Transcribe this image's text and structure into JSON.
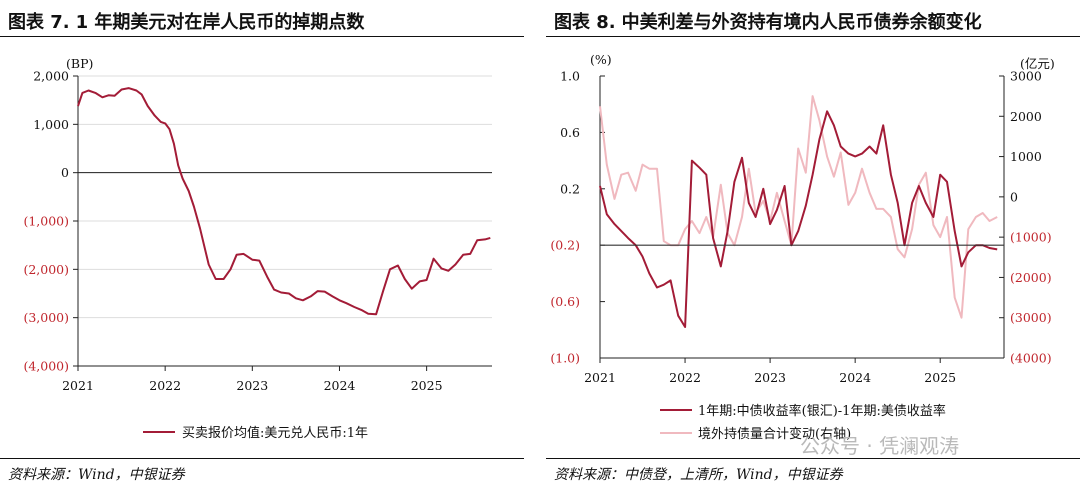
{
  "left": {
    "figure_label": "图表 7.",
    "title": "1 年期美元对在岸人民币的掉期点数",
    "source": "资料来源：Wind，中银证券",
    "chart_data": {
      "type": "line",
      "title": "1 年期美元对在岸人民币的掉期点数",
      "ylabel": "(BP)",
      "ylim": [
        -4000,
        2000
      ],
      "xlim": [
        2021.0,
        2025.75
      ],
      "yticks": [
        2000,
        1000,
        0,
        -1000,
        -2000,
        -3000,
        -4000
      ],
      "ytick_labels": [
        "2,000",
        "1,000",
        "0",
        "(1,000)",
        "(2,000)",
        "(3,000)",
        "(4,000)"
      ],
      "xticks": [
        2021,
        2022,
        2023,
        2024,
        2025
      ],
      "xtick_labels": [
        "2021",
        "2022",
        "2023",
        "2024",
        "2025"
      ],
      "colors": {
        "series": "#a31c37",
        "negative_tick": "#c0262d",
        "axis": "#222222",
        "grid": "#dddddd"
      },
      "series": [
        {
          "name": "买卖报价均值:美元兑人民币:1年",
          "x": [
            2021.0,
            2021.05,
            2021.12,
            2021.2,
            2021.28,
            2021.35,
            2021.42,
            2021.5,
            2021.58,
            2021.67,
            2021.73,
            2021.8,
            2021.88,
            2021.95,
            2022.0,
            2022.05,
            2022.1,
            2022.15,
            2022.2,
            2022.27,
            2022.33,
            2022.4,
            2022.5,
            2022.58,
            2022.67,
            2022.75,
            2022.82,
            2022.9,
            2023.0,
            2023.08,
            2023.17,
            2023.25,
            2023.33,
            2023.42,
            2023.5,
            2023.58,
            2023.67,
            2023.75,
            2023.83,
            2023.92,
            2024.0,
            2024.08,
            2024.17,
            2024.25,
            2024.33,
            2024.42,
            2024.5,
            2024.58,
            2024.67,
            2024.75,
            2024.83,
            2024.92,
            2025.0,
            2025.08,
            2025.17,
            2025.25,
            2025.33,
            2025.42,
            2025.5,
            2025.58,
            2025.67,
            2025.73
          ],
          "values": [
            1380,
            1650,
            1700,
            1650,
            1560,
            1600,
            1590,
            1720,
            1750,
            1700,
            1620,
            1380,
            1180,
            1050,
            1020,
            900,
            600,
            150,
            -120,
            -380,
            -700,
            -1150,
            -1900,
            -2200,
            -2200,
            -2000,
            -1700,
            -1680,
            -1800,
            -1820,
            -2150,
            -2420,
            -2480,
            -2500,
            -2600,
            -2640,
            -2560,
            -2450,
            -2460,
            -2560,
            -2640,
            -2700,
            -2780,
            -2840,
            -2920,
            -2930,
            -2450,
            -2000,
            -1920,
            -2200,
            -2400,
            -2250,
            -2220,
            -1780,
            -1980,
            -2030,
            -1900,
            -1700,
            -1680,
            -1400,
            -1380,
            -1350
          ]
        }
      ],
      "legend": "bottom"
    }
  },
  "right": {
    "figure_label": "图表 8.",
    "title": "中美利差与外资持有境内人民币债券余额变化",
    "source": "资料来源：中债登，上清所，Wind，中银证券",
    "chart_data": {
      "type": "line",
      "title": "中美利差与外资持有境内人民币债券余额变化",
      "ylabel": "(%)",
      "y2label": "(亿元)",
      "ylim": [
        -1.0,
        1.0
      ],
      "y2lim": [
        -4000,
        3000
      ],
      "xlim": [
        2021.0,
        2025.75
      ],
      "yticks": [
        1.0,
        0.6,
        0.2,
        -0.2,
        -0.6,
        -1.0
      ],
      "ytick_labels": [
        "1.0",
        "0.6",
        "0.2",
        "(0.2)",
        "(0.6)",
        "(1.0)"
      ],
      "y2ticks": [
        3000,
        2000,
        1000,
        0,
        -1000,
        -2000,
        -3000,
        -4000
      ],
      "y2tick_labels": [
        "3000",
        "2000",
        "1000",
        "0",
        "(1000)",
        "(2000)",
        "(3000)",
        "(4000)"
      ],
      "xticks": [
        2021,
        2022,
        2023,
        2024,
        2025
      ],
      "xtick_labels": [
        "2021",
        "2022",
        "2023",
        "2024",
        "2025"
      ],
      "hline_y": -0.2,
      "colors": {
        "spread": "#a31c37",
        "holdings": "#f0b9bf",
        "negative_tick": "#c0262d",
        "axis": "#222222",
        "hline": "#333333"
      },
      "series": [
        {
          "name": "1年期:中债收益率(银汇)-1年期:美债收益率",
          "axis": "left",
          "x": [
            2021.0,
            2021.08,
            2021.17,
            2021.25,
            2021.33,
            2021.42,
            2021.5,
            2021.58,
            2021.67,
            2021.75,
            2021.83,
            2021.92,
            2022.0,
            2022.08,
            2022.17,
            2022.25,
            2022.33,
            2022.42,
            2022.5,
            2022.58,
            2022.67,
            2022.75,
            2022.83,
            2022.92,
            2023.0,
            2023.08,
            2023.17,
            2023.25,
            2023.33,
            2023.42,
            2023.5,
            2023.58,
            2023.67,
            2023.75,
            2023.83,
            2023.92,
            2024.0,
            2024.08,
            2024.17,
            2024.25,
            2024.33,
            2024.42,
            2024.5,
            2024.58,
            2024.67,
            2024.75,
            2024.83,
            2024.92,
            2025.0,
            2025.08,
            2025.17,
            2025.25,
            2025.33,
            2025.42,
            2025.5,
            2025.58,
            2025.67
          ],
          "values": [
            0.22,
            0.02,
            -0.05,
            -0.1,
            -0.15,
            -0.2,
            -0.28,
            -0.4,
            -0.5,
            -0.48,
            -0.45,
            -0.7,
            -0.78,
            0.4,
            0.35,
            0.3,
            -0.15,
            -0.35,
            -0.1,
            0.25,
            0.42,
            0.1,
            0.0,
            0.2,
            -0.05,
            0.05,
            0.22,
            -0.2,
            -0.1,
            0.08,
            0.3,
            0.55,
            0.75,
            0.65,
            0.5,
            0.45,
            0.43,
            0.45,
            0.5,
            0.45,
            0.65,
            0.3,
            0.1,
            -0.2,
            0.1,
            0.22,
            0.1,
            0.0,
            0.3,
            0.25,
            -0.1,
            -0.35,
            -0.25,
            -0.2,
            -0.2,
            -0.22,
            -0.23
          ]
        },
        {
          "name": "境外持债量合计变动(右轴)",
          "axis": "right",
          "x": [
            2021.0,
            2021.08,
            2021.17,
            2021.25,
            2021.33,
            2021.42,
            2021.5,
            2021.58,
            2021.67,
            2021.75,
            2021.83,
            2021.92,
            2022.0,
            2022.08,
            2022.17,
            2022.25,
            2022.33,
            2022.42,
            2022.5,
            2022.58,
            2022.67,
            2022.75,
            2022.83,
            2022.92,
            2023.0,
            2023.08,
            2023.17,
            2023.25,
            2023.33,
            2023.42,
            2023.5,
            2023.58,
            2023.67,
            2023.75,
            2023.83,
            2023.92,
            2024.0,
            2024.08,
            2024.17,
            2024.25,
            2024.33,
            2024.42,
            2024.5,
            2024.58,
            2024.67,
            2024.75,
            2024.83,
            2024.92,
            2025.0,
            2025.08,
            2025.17,
            2025.25,
            2025.33,
            2025.42,
            2025.5,
            2025.58,
            2025.67
          ],
          "values": [
            2250,
            800,
            -50,
            550,
            600,
            150,
            800,
            700,
            700,
            -1100,
            -1200,
            -1200,
            -800,
            -600,
            -900,
            -500,
            -1000,
            300,
            -900,
            -1200,
            -500,
            700,
            -400,
            -100,
            -600,
            100,
            -600,
            -1200,
            1200,
            600,
            2500,
            1900,
            1000,
            500,
            1100,
            -200,
            100,
            700,
            100,
            -300,
            -300,
            -500,
            -1300,
            -1500,
            -800,
            300,
            600,
            -700,
            -1000,
            -500,
            -2500,
            -3000,
            -800,
            -500,
            -400,
            -600,
            -500
          ]
        }
      ],
      "legend": "bottom"
    }
  },
  "watermark": "公众号 · 凭澜观涛"
}
